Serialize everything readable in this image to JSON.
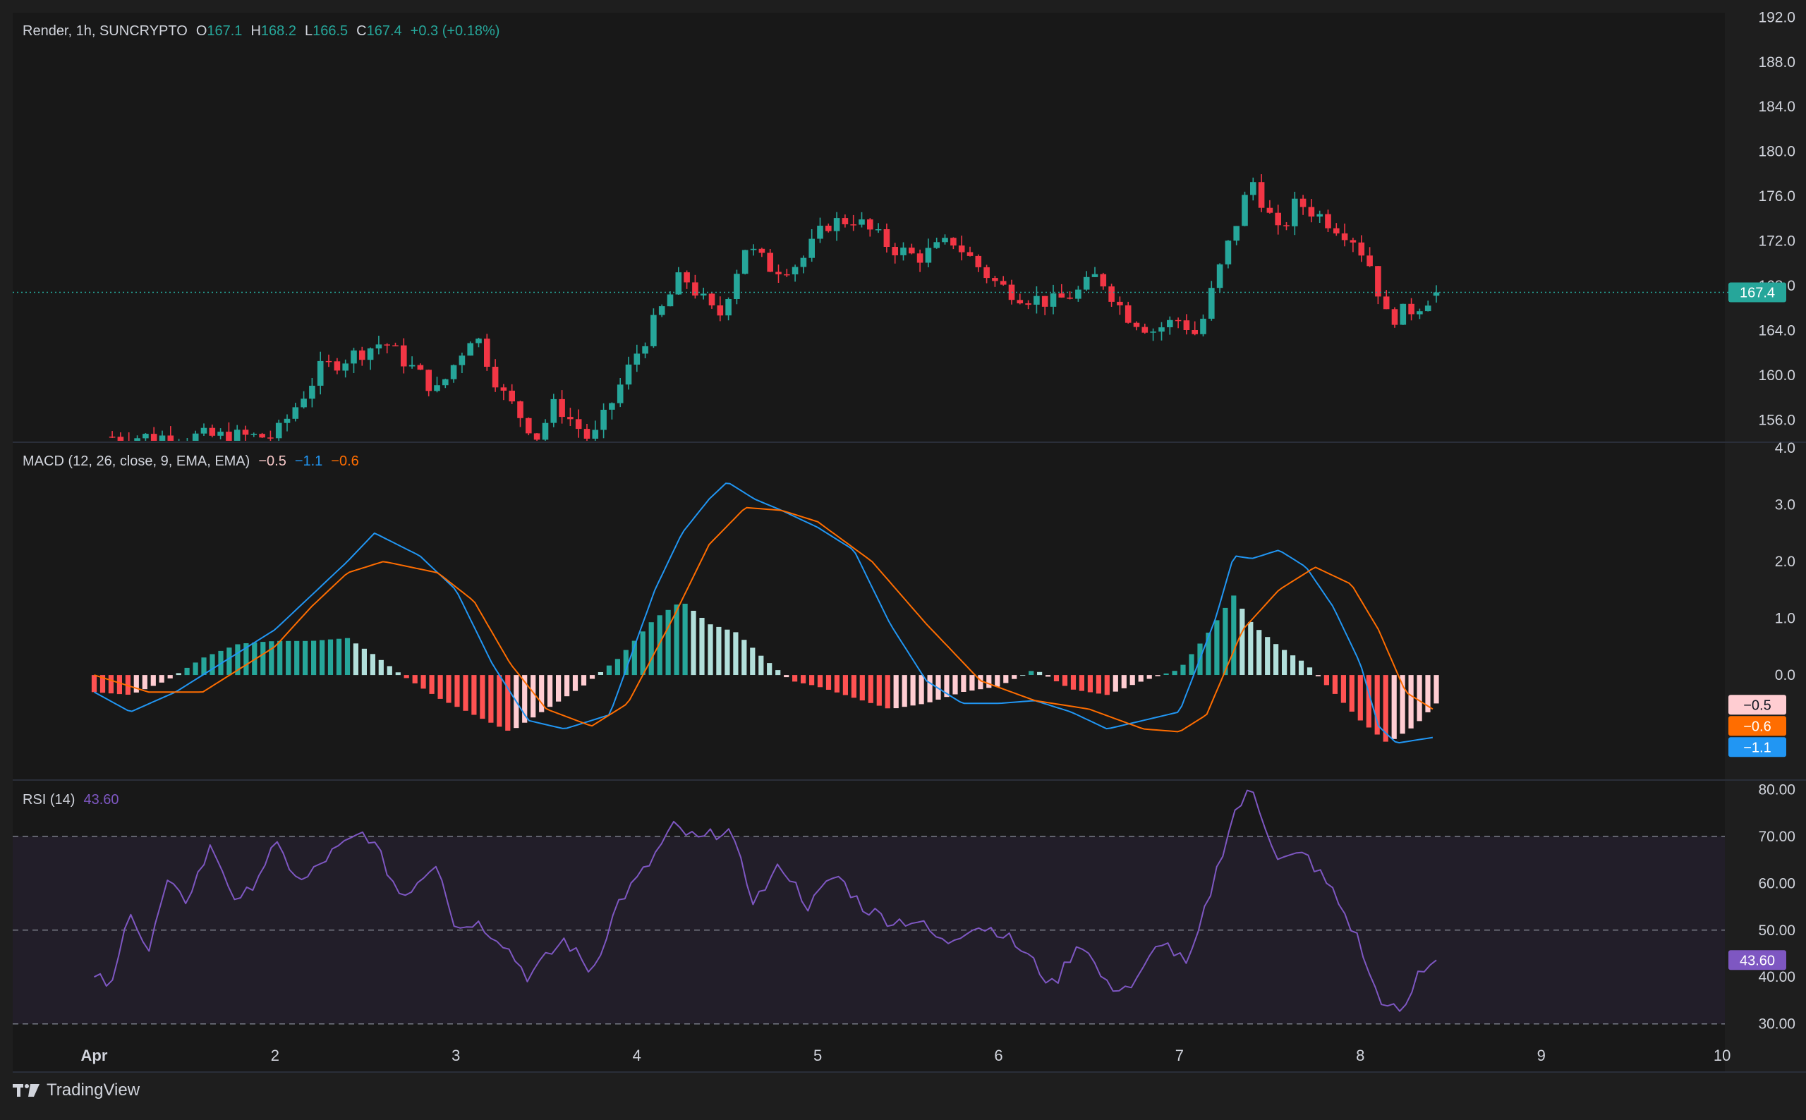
{
  "header": {
    "symbol": "Render, 1h, SUNCRYPTO",
    "open_label": "O",
    "open": "167.1",
    "high_label": "H",
    "high": "168.2",
    "low_label": "L",
    "low": "166.5",
    "close_label": "C",
    "close": "167.4",
    "change": "+0.3 (+0.18%)"
  },
  "macd": {
    "label": "MACD (12, 26, close, 9, EMA, EMA)",
    "hist": "−0.5",
    "macd": "−1.1",
    "signal": "−0.6"
  },
  "rsi": {
    "label": "RSI (14)",
    "value": "43.60"
  },
  "footer": {
    "brand": "TradingView"
  },
  "colors": {
    "up": "#26a69a",
    "down": "#f23645",
    "macd": "#2196f3",
    "signal": "#ff6d00",
    "rsi": "#7e57c2",
    "background": "#1e1e1e"
  },
  "chart_data": [
    {
      "type": "candlestick",
      "title": "Render, 1h, SUNCRYPTO",
      "ylim": [
        154.0,
        192.4
      ],
      "y_ticks": [
        "192.0",
        "188.0",
        "184.0",
        "180.0",
        "176.0",
        "172.0",
        "168.0",
        "164.0",
        "160.0",
        "156.0"
      ],
      "last_price": "167.4",
      "points": [
        [
          1.0,
          154.5
        ],
        [
          1.25,
          160.5
        ],
        [
          1.6,
          163.0
        ],
        [
          1.9,
          158.5
        ],
        [
          2.1,
          164.0
        ],
        [
          2.25,
          158.5
        ],
        [
          2.45,
          154.5
        ],
        [
          2.55,
          157.5
        ],
        [
          2.75,
          154.0
        ],
        [
          3.0,
          162.0
        ],
        [
          3.25,
          169.0
        ],
        [
          3.45,
          165.0
        ],
        [
          3.6,
          171.5
        ],
        [
          3.75,
          169.5
        ],
        [
          3.9,
          170.0
        ],
        [
          4.05,
          173.5
        ],
        [
          4.2,
          174.0
        ],
        [
          4.4,
          171.5
        ],
        [
          4.55,
          170.5
        ],
        [
          4.75,
          172.0
        ],
        [
          4.9,
          169.5
        ],
        [
          5.0,
          168.0
        ],
        [
          5.15,
          167.0
        ],
        [
          5.3,
          166.5
        ],
        [
          5.45,
          167.5
        ],
        [
          5.55,
          169.0
        ],
        [
          5.7,
          165.5
        ],
        [
          5.85,
          164.0
        ],
        [
          6.0,
          165.0
        ],
        [
          6.1,
          163.5
        ],
        [
          6.2,
          168.5
        ],
        [
          6.3,
          173.0
        ],
        [
          6.4,
          177.5
        ],
        [
          6.55,
          172.5
        ],
        [
          6.65,
          175.5
        ],
        [
          6.8,
          174.0
        ],
        [
          6.95,
          172.5
        ],
        [
          7.05,
          170.0
        ],
        [
          7.15,
          165.0
        ],
        [
          7.3,
          166.0
        ],
        [
          7.42,
          167.4
        ]
      ]
    },
    {
      "type": "line",
      "title": "MACD (12, 26, close, 9, EMA, EMA)",
      "ylim": [
        -1.85,
        4.1
      ],
      "y_ticks": [
        "4.0",
        "3.0",
        "2.0",
        "1.0",
        "0.0"
      ],
      "series": [
        {
          "name": "MACD",
          "x": [
            0.0,
            0.2,
            0.45,
            0.7,
            1.0,
            1.2,
            1.4,
            1.55,
            1.8,
            2.0,
            2.2,
            2.4,
            2.6,
            2.85,
            3.1,
            3.25,
            3.4,
            3.5,
            3.65,
            3.8,
            4.0,
            4.2,
            4.4,
            4.6,
            4.8,
            5.0,
            5.2,
            5.4,
            5.6,
            5.8,
            6.0,
            6.2,
            6.3,
            6.4,
            6.55,
            6.7,
            6.85,
            7.0,
            7.1,
            7.2,
            7.4
          ],
          "values": [
            -0.3,
            -0.65,
            -0.3,
            0.2,
            0.8,
            1.4,
            2.0,
            2.5,
            2.1,
            1.5,
            0.2,
            -0.8,
            -0.95,
            -0.7,
            1.5,
            2.5,
            3.1,
            3.4,
            3.1,
            2.9,
            2.6,
            2.2,
            0.9,
            -0.1,
            -0.5,
            -0.5,
            -0.45,
            -0.65,
            -0.95,
            -0.8,
            -0.65,
            1.0,
            2.1,
            2.05,
            2.2,
            1.9,
            1.2,
            0.2,
            -0.9,
            -1.2,
            -1.1
          ]
        },
        {
          "name": "Signal",
          "x": [
            0.0,
            0.3,
            0.6,
            1.0,
            1.2,
            1.4,
            1.6,
            1.9,
            2.1,
            2.3,
            2.5,
            2.75,
            2.95,
            3.2,
            3.4,
            3.6,
            3.8,
            4.0,
            4.3,
            4.6,
            4.9,
            5.2,
            5.5,
            5.8,
            6.0,
            6.15,
            6.35,
            6.55,
            6.75,
            6.95,
            7.1,
            7.25,
            7.4
          ],
          "values": [
            0.0,
            -0.3,
            -0.3,
            0.5,
            1.2,
            1.8,
            2.0,
            1.8,
            1.3,
            0.2,
            -0.6,
            -0.9,
            -0.5,
            1.0,
            2.3,
            2.95,
            2.9,
            2.7,
            2.0,
            0.9,
            -0.1,
            -0.45,
            -0.6,
            -0.95,
            -1.0,
            -0.7,
            0.8,
            1.5,
            1.9,
            1.6,
            0.8,
            -0.3,
            -0.6
          ]
        }
      ],
      "histogram": {
        "x": [
          0.0,
          0.2,
          0.4,
          0.6,
          0.8,
          1.0,
          1.2,
          1.4,
          1.55,
          1.7,
          1.9,
          2.1,
          2.3,
          2.5,
          2.7,
          2.9,
          3.1,
          3.25,
          3.4,
          3.55,
          3.7,
          3.85,
          4.0,
          4.2,
          4.4,
          4.6,
          4.8,
          5.0,
          5.2,
          5.4,
          5.6,
          5.8,
          6.0,
          6.15,
          6.3,
          6.4,
          6.55,
          6.7,
          6.85,
          7.0,
          7.15,
          7.3,
          7.42
        ],
        "values": [
          -0.3,
          -0.35,
          -0.1,
          0.3,
          0.55,
          0.6,
          0.6,
          0.65,
          0.35,
          0.0,
          -0.4,
          -0.7,
          -1.0,
          -0.6,
          -0.2,
          0.3,
          1.0,
          1.3,
          0.9,
          0.75,
          0.3,
          -0.1,
          -0.2,
          -0.4,
          -0.6,
          -0.5,
          -0.3,
          -0.2,
          0.1,
          -0.25,
          -0.35,
          -0.1,
          0.1,
          0.7,
          1.4,
          0.9,
          0.5,
          0.2,
          -0.3,
          -0.8,
          -1.2,
          -0.9,
          -0.5
        ]
      }
    },
    {
      "type": "line",
      "title": "RSI (14)",
      "ylim": [
        26.5,
        82.0
      ],
      "y_ticks": [
        "80.00",
        "70.00",
        "60.00",
        "50.00",
        "40.00",
        "30.00"
      ],
      "bands": [
        30,
        50,
        70
      ],
      "series": [
        {
          "name": "RSI",
          "x": [
            0.0,
            0.1,
            0.2,
            0.3,
            0.4,
            0.5,
            0.65,
            0.8,
            1.0,
            1.15,
            1.3,
            1.5,
            1.55,
            1.7,
            1.9,
            2.0,
            2.1,
            2.25,
            2.4,
            2.5,
            2.6,
            2.75,
            2.9,
            3.05,
            3.2,
            3.35,
            3.5,
            3.65,
            3.8,
            3.95,
            4.1,
            4.25,
            4.4,
            4.55,
            4.7,
            4.85,
            5.0,
            5.15,
            5.3,
            5.45,
            5.6,
            5.75,
            5.9,
            6.05,
            6.2,
            6.3,
            6.4,
            6.55,
            6.7,
            6.85,
            7.0,
            7.05,
            7.15,
            7.25,
            7.32,
            7.42
          ],
          "values": [
            40,
            38,
            55,
            45,
            60,
            56,
            68,
            55,
            68,
            60,
            66,
            71,
            68,
            57,
            65,
            50,
            52,
            48,
            40,
            44,
            48,
            41,
            56,
            63,
            72,
            69,
            72,
            56,
            64,
            55,
            62,
            55,
            52,
            52,
            47,
            51,
            50,
            45,
            38,
            48,
            38,
            38,
            48,
            42,
            62,
            75,
            80,
            65,
            66,
            58,
            47,
            40,
            33,
            33,
            41,
            43.6
          ]
        }
      ]
    }
  ],
  "x_axis": {
    "labels": [
      "Apr",
      "2",
      "3",
      "4",
      "5",
      "6",
      "7",
      "8",
      "9",
      "10"
    ]
  },
  "badges": {
    "price": "167.4",
    "hist": "−0.5",
    "signal": "−0.6",
    "macd": "−1.1",
    "rsi": "43.60"
  }
}
